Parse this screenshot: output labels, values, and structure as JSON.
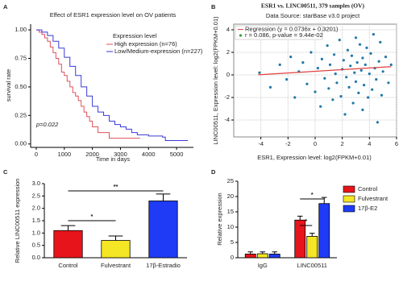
{
  "chart_data": [
    {
      "type": "line",
      "panel": "A",
      "title": "Effect of ESR1 expression level on OV patients",
      "x_label": "Time in days",
      "y_label": "survival rate",
      "legend_title": "Expression level",
      "annotation": "p=0.022",
      "xlim": [
        -200,
        5600
      ],
      "xticks": [
        0,
        1000,
        2000,
        3000,
        4000,
        5000
      ],
      "ylim": [
        -0.03,
        1.05
      ],
      "yticks": [
        {
          "value": 0,
          "label": "0.00"
        },
        0.25,
        {
          "value": 0.5,
          "label": "0.50"
        },
        0.75,
        {
          "value": 1,
          "label": "1.00"
        }
      ],
      "series": [
        {
          "name": "High expression (n=76)",
          "color": "#e0505a",
          "x": [
            0,
            100,
            200,
            300,
            400,
            500,
            600,
            700,
            800,
            900,
            1000,
            1100,
            1200,
            1300,
            1400,
            1500,
            1600,
            1700,
            1800,
            1900,
            2000,
            2200,
            2600,
            3700
          ],
          "values": [
            1.0,
            0.98,
            0.96,
            0.93,
            0.9,
            0.85,
            0.8,
            0.75,
            0.7,
            0.63,
            0.6,
            0.55,
            0.5,
            0.45,
            0.42,
            0.38,
            0.33,
            0.28,
            0.24,
            0.2,
            0.15,
            0.1,
            0.05,
            0.05
          ]
        },
        {
          "name": "Low/Medium-expression (n=227)",
          "color": "#3a3ad8",
          "x": [
            0,
            200,
            400,
            600,
            800,
            1000,
            1200,
            1400,
            1600,
            1800,
            2000,
            2200,
            2400,
            2600,
            2800,
            3000,
            3200,
            3400,
            3600,
            4000,
            4500,
            4600,
            5400
          ],
          "values": [
            1.0,
            0.98,
            0.95,
            0.9,
            0.84,
            0.76,
            0.68,
            0.6,
            0.5,
            0.42,
            0.33,
            0.28,
            0.25,
            0.2,
            0.17,
            0.15,
            0.13,
            0.1,
            0.08,
            0.07,
            0.06,
            0.03,
            0.03
          ]
        }
      ]
    },
    {
      "type": "scatter",
      "panel": "B",
      "title": "ESR1 vs. LINC00511, 379 samples (OV)",
      "subtitle": "Data Source: starBase v3.0 project",
      "x_label": "ESR1, Expression level: log2(FPKM+0.01)",
      "y_label": "LINC00511, Expression level: log2(FPKM+0.01)",
      "xlim": [
        -6,
        6
      ],
      "xticks": [
        -4,
        -2,
        0,
        2,
        4,
        6
      ],
      "ylim": [
        -5.5,
        4.5
      ],
      "yticks": [
        -4,
        -2,
        0,
        2,
        4
      ],
      "grid": true,
      "series": [
        {
          "name": "Regression (y = 0.0736x + 0.3201)",
          "color": "#e04040",
          "x": [
            -4.2,
            5.6
          ],
          "values": [
            0.01,
            0.73
          ]
        },
        {
          "name": "r = 0.086, p-value = 9.44e-02",
          "color": "#1f78a8",
          "legend_color": "#3a9a3a",
          "x": [
            -4.1,
            -3.3,
            -2.6,
            -2.1,
            -1.8,
            -1.5,
            -1.2,
            -0.9,
            -0.6,
            -0.3,
            0,
            0.2,
            0.4,
            0.5,
            0.7,
            0.9,
            1.0,
            1.1,
            1.3,
            1.4,
            1.5,
            1.6,
            1.8,
            1.9,
            2.0,
            2.1,
            2.2,
            2.3,
            2.4,
            2.5,
            2.6,
            2.7,
            2.8,
            2.9,
            3.0,
            3.0,
            3.1,
            3.2,
            3.3,
            3.4,
            3.5,
            3.5,
            3.6,
            3.7,
            3.8,
            3.9,
            4.0,
            4.1,
            4.2,
            4.3,
            4.4,
            4.5,
            4.6,
            4.7,
            4.8,
            4.9,
            5.0,
            5.2,
            5.4,
            5.6
          ],
          "values": [
            0.2,
            -1.1,
            0.9,
            -0.4,
            1.6,
            -2.0,
            0.3,
            1.1,
            -0.8,
            2.0,
            -1.5,
            0.6,
            -2.8,
            1.4,
            -0.3,
            2.6,
            -1.2,
            0.9,
            -2.2,
            1.8,
            0.1,
            -0.7,
            3.1,
            -1.9,
            0.5,
            1.3,
            -3.5,
            -0.2,
            2.2,
            -1.1,
            0.8,
            1.7,
            -2.5,
            0.2,
            3.3,
            -0.6,
            1.1,
            -1.6,
            2.7,
            0.4,
            -3.1,
            1.5,
            -0.9,
            0.9,
            2.4,
            -2.0,
            0.1,
            1.9,
            -1.3,
            3.6,
            0.6,
            -0.4,
            -4.2,
            1.2,
            2.9,
            -1.8,
            0.3,
            1.6,
            -0.7,
            0.9
          ]
        }
      ]
    },
    {
      "type": "bar",
      "panel": "C",
      "y_label": "Relative LINC00511 expression",
      "categories": [
        "Control",
        "Fulvestrant",
        "17β-Estradio"
      ],
      "values": [
        1.1,
        0.7,
        2.3
      ],
      "errors": [
        0.2,
        0.18,
        0.28
      ],
      "colors": [
        "#e8141b",
        "#f5e625",
        "#1f3bf5"
      ],
      "ylim": [
        0,
        3
      ],
      "yticks": [
        {
          "value": 0,
          "label": "0.0"
        },
        0.5,
        {
          "value": 1,
          "label": "1.0"
        },
        1.5,
        {
          "value": 2,
          "label": "2.0"
        },
        2.5,
        {
          "value": 3,
          "label": "3.0"
        }
      ],
      "significance": [
        "*",
        "**"
      ]
    },
    {
      "type": "bar",
      "panel": "D",
      "y_label": "Relative expression",
      "categories": [
        "IgG",
        "LINC00511"
      ],
      "series": [
        {
          "name": "Control",
          "color": "#e8141b",
          "values": [
            1.2,
            12.3
          ],
          "errors": [
            0.7,
            1.3
          ]
        },
        {
          "name": "Fulvestrant",
          "color": "#f5e625",
          "values": [
            1.3,
            7.0
          ],
          "errors": [
            0.6,
            1.0
          ]
        },
        {
          "name": "17β-E2",
          "color": "#1f3bf5",
          "values": [
            1.2,
            17.7
          ],
          "errors": [
            0.7,
            2.0
          ]
        }
      ],
      "ylim": [
        0,
        25
      ],
      "yticks": [
        0,
        5,
        10,
        15,
        20,
        25
      ],
      "significance": [
        "*",
        "*"
      ]
    }
  ]
}
